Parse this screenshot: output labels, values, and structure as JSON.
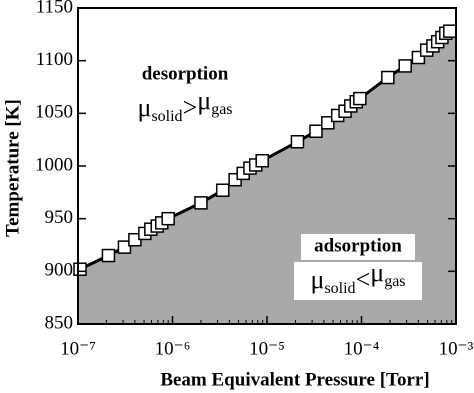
{
  "chart_data": {
    "type": "line",
    "x_label": "Beam Equivalent Pressure [Torr]",
    "y_label": "Temperature [K]",
    "log_x": true,
    "xlim": [
      1e-07,
      0.001
    ],
    "ylim": [
      850,
      1150
    ],
    "xticks": [
      {
        "value": 1e-07,
        "label": "10⁻⁷"
      },
      {
        "value": 1e-06,
        "label": "10⁻⁶"
      },
      {
        "value": 1e-05,
        "label": "10⁻⁵"
      },
      {
        "value": 0.0001,
        "label": "10⁻⁴"
      },
      {
        "value": 0.001,
        "label": "10⁻³"
      }
    ],
    "yticks": [
      850,
      900,
      950,
      1000,
      1050,
      1100,
      1150
    ],
    "line_color": "#000000",
    "fill_color": "#a9a9a9",
    "x": [
      1.05e-07,
      2.1e-07,
      3.1e-07,
      4e-07,
      5.1e-07,
      5.9e-07,
      6.9e-07,
      7.7e-07,
      9e-07,
      2e-06,
      3.4e-06,
      4.6e-06,
      5.6e-06,
      6.6e-06,
      7.6e-06,
      8.9e-06,
      2.1e-05,
      3.3e-05,
      4.4e-05,
      5.6e-05,
      6.7e-05,
      7.7e-05,
      8.8e-05,
      9.6e-05,
      0.00019,
      0.00029,
      0.0004,
      0.00049,
      0.00057,
      0.00064,
      0.00071,
      0.00078,
      0.00086
    ],
    "values": [
      902,
      915,
      923,
      930,
      936,
      940,
      943,
      946,
      950,
      965,
      977,
      987,
      993,
      998,
      1001,
      1005,
      1023,
      1033,
      1041,
      1048,
      1052,
      1057,
      1061,
      1064,
      1084,
      1095,
      1103,
      1110,
      1114,
      1118,
      1122,
      1126,
      1128
    ],
    "annotations": [
      {
        "title": "desorption",
        "equation": [
          "μ",
          "solid",
          ">",
          "μ",
          "gas"
        ]
      },
      {
        "title": "adsorption",
        "equation": [
          "μ",
          "solid",
          "<",
          "μ",
          "gas"
        ]
      }
    ]
  }
}
